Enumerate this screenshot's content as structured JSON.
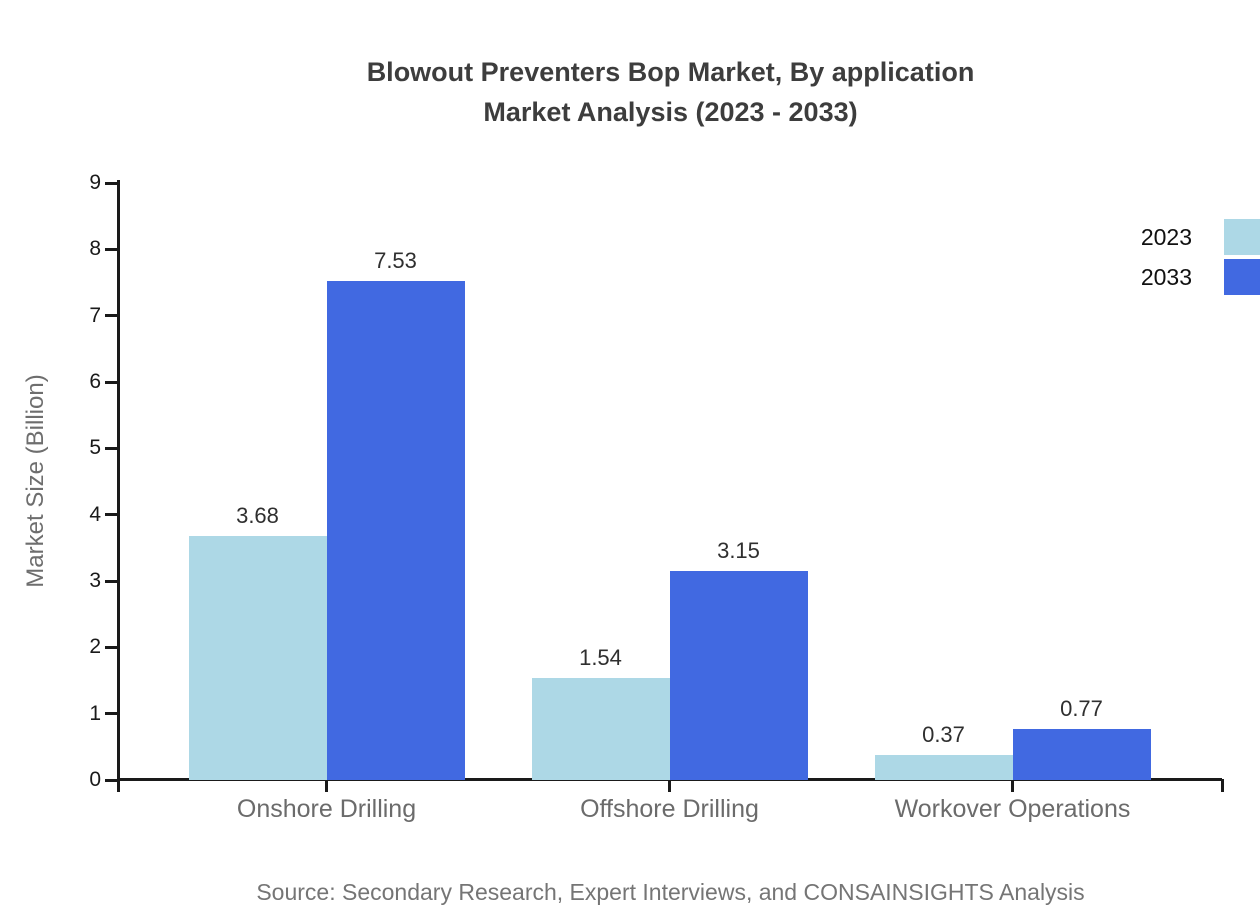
{
  "title": {
    "line1": "Blowout Preventers Bop Market, By application",
    "line2": "Market Analysis (2023 - 2033)"
  },
  "source": "Source: Secondary Research, Expert Interviews, and CONSAINSIGHTS Analysis",
  "chart_data": {
    "type": "bar",
    "categories": [
      "Onshore Drilling",
      "Offshore Drilling",
      "Workover Operations"
    ],
    "series": [
      {
        "name": "2023",
        "color": "#add8e6",
        "values": [
          3.68,
          1.54,
          0.37
        ]
      },
      {
        "name": "2033",
        "color": "#4169e1",
        "values": [
          7.53,
          3.15,
          0.77
        ]
      }
    ],
    "ylabel": "Market Size (Billion)",
    "xlabel": "",
    "ylim": [
      0,
      9
    ],
    "yticks": [
      0,
      1,
      2,
      3,
      4,
      5,
      6,
      7,
      8,
      9
    ],
    "grid": false,
    "value_labels": true,
    "legend_position": "right"
  },
  "colors": {
    "axis": "#1a1a1a",
    "tick_label": "#1a1a1a",
    "value_label": "#2f2f2f",
    "category_label": "#6b6b6b",
    "title": "#3d3d3d",
    "y_axis_title": "#6e6e6e",
    "source": "#757575",
    "series_2023": "#add8e6",
    "series_2033": "#4169e1",
    "background": "#ffffff"
  }
}
